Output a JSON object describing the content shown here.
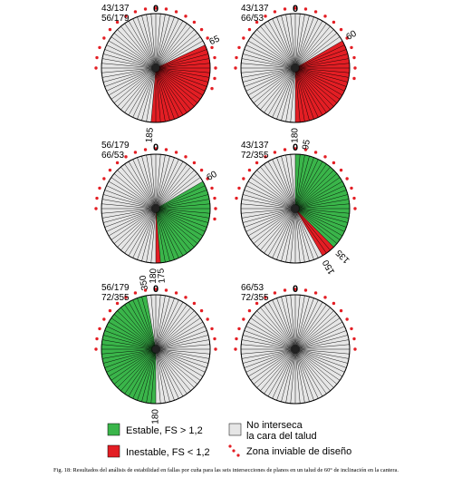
{
  "colors": {
    "stable": "#3ab54a",
    "unstable": "#e31e24",
    "no_intersect": "#e6e6e6",
    "inviable_dot": "#e31e24",
    "line": "#000000"
  },
  "panels": [
    {
      "id": "p1",
      "label_line1": "43/137",
      "label_line2": "56/179",
      "north_label": "0",
      "sectors": [
        {
          "from": 65,
          "to": 185,
          "status": "unstable"
        }
      ],
      "dots_from": 270,
      "dots_to": 110,
      "angle_labels": [
        {
          "text": "65",
          "angle": 65
        },
        {
          "text": "185",
          "angle": 185
        }
      ]
    },
    {
      "id": "p2",
      "label_line1": "43/137",
      "label_line2": "66/53",
      "north_label": "0",
      "sectors": [
        {
          "from": 60,
          "to": 180,
          "status": "unstable"
        }
      ],
      "dots_from": 270,
      "dots_to": 100,
      "angle_labels": [
        {
          "text": "60",
          "angle": 60
        },
        {
          "text": "180",
          "angle": 180
        }
      ]
    },
    {
      "id": "p3",
      "label_line1": "56/179",
      "label_line2": "66/53",
      "north_label": "0",
      "sectors": [
        {
          "from": 60,
          "to": 175,
          "status": "stable"
        },
        {
          "from": 175,
          "to": 180,
          "status": "unstable"
        }
      ],
      "dots_from": 270,
      "dots_to": 100,
      "angle_labels": [
        {
          "text": "60",
          "angle": 60
        },
        {
          "text": "175",
          "angle": 175
        },
        {
          "text": "180",
          "angle": 182
        }
      ]
    },
    {
      "id": "p4",
      "label_line1": "43/137",
      "label_line2": "72/355",
      "north_label": "0",
      "sectors": [
        {
          "from": 0,
          "to": 135,
          "status": "stable"
        },
        {
          "from": 135,
          "to": 150,
          "status": "unstable"
        }
      ],
      "dots_from": 275,
      "dots_to": 95,
      "angle_labels": [
        {
          "text": "95",
          "angle": 10
        },
        {
          "text": "135",
          "angle": 135
        },
        {
          "text": "150",
          "angle": 150
        }
      ]
    },
    {
      "id": "p5",
      "label_line1": "56/179",
      "label_line2": "72/355",
      "north_label": "0",
      "sectors": [
        {
          "from": 180,
          "to": 350,
          "status": "stable"
        }
      ],
      "dots_from": 270,
      "dots_to": 90,
      "angle_labels": [
        {
          "text": "350",
          "angle": 350
        },
        {
          "text": "180",
          "angle": 180
        }
      ]
    },
    {
      "id": "p6",
      "label_line1": "66/53",
      "label_line2": "72/355",
      "north_label": "0",
      "sectors": [],
      "dots_from": 270,
      "dots_to": 90,
      "angle_labels": []
    }
  ],
  "legend": {
    "stable": "Estable, FS > 1,2",
    "unstable": "Inestable, FS < 1,2",
    "no_intersect_line1": "No interseca",
    "no_intersect_line2": "la cara del talud",
    "inviable": "Zona inviable de diseño"
  },
  "caption": "Fig. 18: Resultados del análisis de estabilidad en fallas por cuña para las seis intersecciones de planos en un talud de 60° de inclinación en la cantera."
}
